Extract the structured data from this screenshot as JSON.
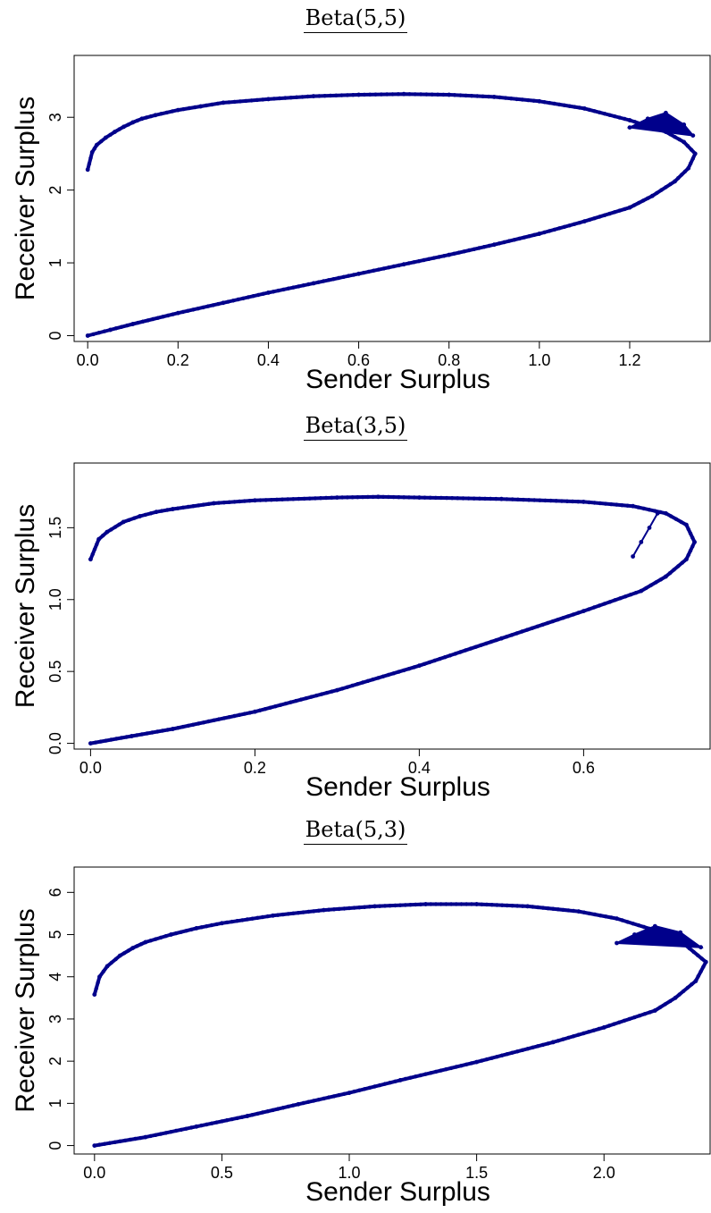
{
  "chart_data": [
    {
      "type": "scatter",
      "title": "Beta(5,5)",
      "xlabel": "Sender Surplus",
      "ylabel": "Receiver Surplus",
      "xlim": [
        -0.03,
        1.38
      ],
      "ylim": [
        -0.08,
        3.85
      ],
      "xticks": [
        "0.0",
        "0.2",
        "0.4",
        "0.6",
        "0.8",
        "1.0",
        "1.2"
      ],
      "yticks": [
        "0",
        "1",
        "2",
        "3"
      ],
      "color": "#00008B",
      "series": [
        {
          "values": [
            [
              0.0,
              2.28
            ],
            [
              0.01,
              2.52
            ],
            [
              0.02,
              2.62
            ],
            [
              0.04,
              2.72
            ],
            [
              0.06,
              2.8
            ],
            [
              0.08,
              2.87
            ],
            [
              0.1,
              2.93
            ],
            [
              0.12,
              2.98
            ],
            [
              0.15,
              3.03
            ],
            [
              0.2,
              3.1
            ],
            [
              0.25,
              3.15
            ],
            [
              0.3,
              3.2
            ],
            [
              0.4,
              3.25
            ],
            [
              0.5,
              3.29
            ],
            [
              0.6,
              3.31
            ],
            [
              0.7,
              3.32
            ],
            [
              0.8,
              3.31
            ],
            [
              0.9,
              3.28
            ],
            [
              1.0,
              3.22
            ],
            [
              1.1,
              3.12
            ],
            [
              1.2,
              2.96
            ],
            [
              1.28,
              2.8
            ],
            [
              1.32,
              2.66
            ],
            [
              1.345,
              2.5
            ],
            [
              1.33,
              2.3
            ],
            [
              1.3,
              2.12
            ],
            [
              1.25,
              1.92
            ],
            [
              1.2,
              1.76
            ],
            [
              1.1,
              1.57
            ],
            [
              1.0,
              1.4
            ],
            [
              0.9,
              1.25
            ],
            [
              0.8,
              1.11
            ],
            [
              0.7,
              0.98
            ],
            [
              0.6,
              0.85
            ],
            [
              0.5,
              0.72
            ],
            [
              0.4,
              0.59
            ],
            [
              0.3,
              0.45
            ],
            [
              0.2,
              0.31
            ],
            [
              0.1,
              0.16
            ],
            [
              0.05,
              0.08
            ],
            [
              0.0,
              0.0
            ]
          ]
        },
        {
          "values": [
            [
              1.2,
              2.86
            ],
            [
              1.24,
              2.98
            ],
            [
              1.28,
              3.06
            ],
            [
              1.32,
              2.9
            ],
            [
              1.34,
              2.75
            ]
          ]
        }
      ]
    },
    {
      "type": "scatter",
      "title": "Beta(3,5)",
      "xlabel": "Sender Surplus",
      "ylabel": "Receiver Surplus",
      "xlim": [
        -0.02,
        0.755
      ],
      "ylim": [
        -0.04,
        1.95
      ],
      "xticks": [
        "0.0",
        "0.2",
        "0.4",
        "0.6"
      ],
      "yticks": [
        "0.0",
        "0.5",
        "1.0",
        "1.5"
      ],
      "color": "#00008B",
      "series": [
        {
          "values": [
            [
              0.0,
              1.28
            ],
            [
              0.01,
              1.42
            ],
            [
              0.02,
              1.47
            ],
            [
              0.04,
              1.54
            ],
            [
              0.06,
              1.58
            ],
            [
              0.08,
              1.61
            ],
            [
              0.1,
              1.63
            ],
            [
              0.15,
              1.67
            ],
            [
              0.2,
              1.69
            ],
            [
              0.3,
              1.71
            ],
            [
              0.35,
              1.715
            ],
            [
              0.4,
              1.71
            ],
            [
              0.5,
              1.7
            ],
            [
              0.6,
              1.68
            ],
            [
              0.66,
              1.65
            ],
            [
              0.7,
              1.6
            ],
            [
              0.725,
              1.52
            ],
            [
              0.735,
              1.4
            ],
            [
              0.725,
              1.28
            ],
            [
              0.7,
              1.16
            ],
            [
              0.67,
              1.06
            ],
            [
              0.6,
              0.92
            ],
            [
              0.5,
              0.73
            ],
            [
              0.4,
              0.54
            ],
            [
              0.3,
              0.37
            ],
            [
              0.2,
              0.22
            ],
            [
              0.1,
              0.1
            ],
            [
              0.05,
              0.05
            ],
            [
              0.0,
              0.0
            ]
          ]
        },
        {
          "values": [
            [
              0.66,
              1.3
            ],
            [
              0.67,
              1.4
            ],
            [
              0.68,
              1.5
            ],
            [
              0.69,
              1.6
            ]
          ]
        }
      ]
    },
    {
      "type": "scatter",
      "title": "Beta(5,3)",
      "xlabel": "Sender Surplus",
      "ylabel": "Receiver Surplus",
      "xlim": [
        -0.08,
        2.42
      ],
      "ylim": [
        -0.2,
        6.6
      ],
      "xticks": [
        "0.0",
        "0.5",
        "1.0",
        "1.5",
        "2.0"
      ],
      "yticks": [
        "0",
        "1",
        "2",
        "3",
        "4",
        "5",
        "6"
      ],
      "color": "#00008B",
      "series": [
        {
          "values": [
            [
              0.0,
              3.58
            ],
            [
              0.02,
              4.0
            ],
            [
              0.05,
              4.25
            ],
            [
              0.1,
              4.5
            ],
            [
              0.15,
              4.68
            ],
            [
              0.2,
              4.82
            ],
            [
              0.3,
              5.0
            ],
            [
              0.4,
              5.15
            ],
            [
              0.5,
              5.27
            ],
            [
              0.7,
              5.45
            ],
            [
              0.9,
              5.58
            ],
            [
              1.1,
              5.67
            ],
            [
              1.3,
              5.72
            ],
            [
              1.5,
              5.72
            ],
            [
              1.7,
              5.67
            ],
            [
              1.9,
              5.55
            ],
            [
              2.05,
              5.38
            ],
            [
              2.2,
              5.1
            ],
            [
              2.32,
              4.75
            ],
            [
              2.4,
              4.35
            ],
            [
              2.36,
              3.9
            ],
            [
              2.28,
              3.5
            ],
            [
              2.2,
              3.2
            ],
            [
              2.0,
              2.8
            ],
            [
              1.8,
              2.45
            ],
            [
              1.5,
              1.98
            ],
            [
              1.2,
              1.55
            ],
            [
              1.0,
              1.25
            ],
            [
              0.8,
              0.98
            ],
            [
              0.6,
              0.7
            ],
            [
              0.4,
              0.45
            ],
            [
              0.2,
              0.2
            ],
            [
              0.0,
              0.0
            ]
          ]
        },
        {
          "values": [
            [
              2.05,
              4.8
            ],
            [
              2.12,
              5.0
            ],
            [
              2.2,
              5.2
            ],
            [
              2.3,
              5.05
            ],
            [
              2.38,
              4.7
            ]
          ]
        }
      ]
    }
  ]
}
